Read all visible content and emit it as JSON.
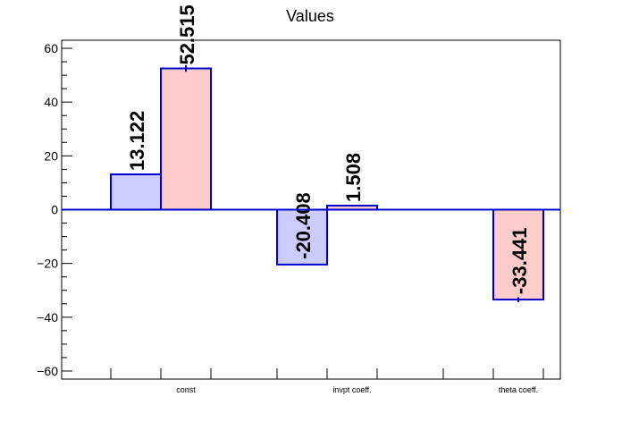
{
  "chart_data": {
    "type": "bar",
    "title": "Values",
    "xlabel": "",
    "ylabel": "",
    "ylim": [
      -63,
      63
    ],
    "yticks": [
      -60,
      -40,
      -20,
      0,
      20,
      40,
      60
    ],
    "ytick_labels": [
      "−60",
      "−40",
      "−20",
      "0",
      "20",
      "40",
      "60"
    ],
    "categories": [
      "const",
      "invpt coeff.",
      "theta coeff."
    ],
    "series": [
      {
        "color_fill": "#ccccff",
        "color_edge": "#0000cc",
        "values": [
          13.122,
          -20.408,
          null
        ],
        "errors": [
          0,
          0,
          0
        ],
        "value_labels": [
          "13.122",
          "-20.408",
          ""
        ]
      },
      {
        "color_fill": "#ffcccc",
        "color_edge": "#0000cc",
        "values": [
          52.515,
          1.508,
          -33.441
        ],
        "errors": [
          1.2,
          0.3,
          0.9
        ],
        "value_labels": [
          "52.515",
          "1.508",
          "-33.441"
        ]
      }
    ],
    "grid": false,
    "zero_line_color": "#0000cc"
  }
}
